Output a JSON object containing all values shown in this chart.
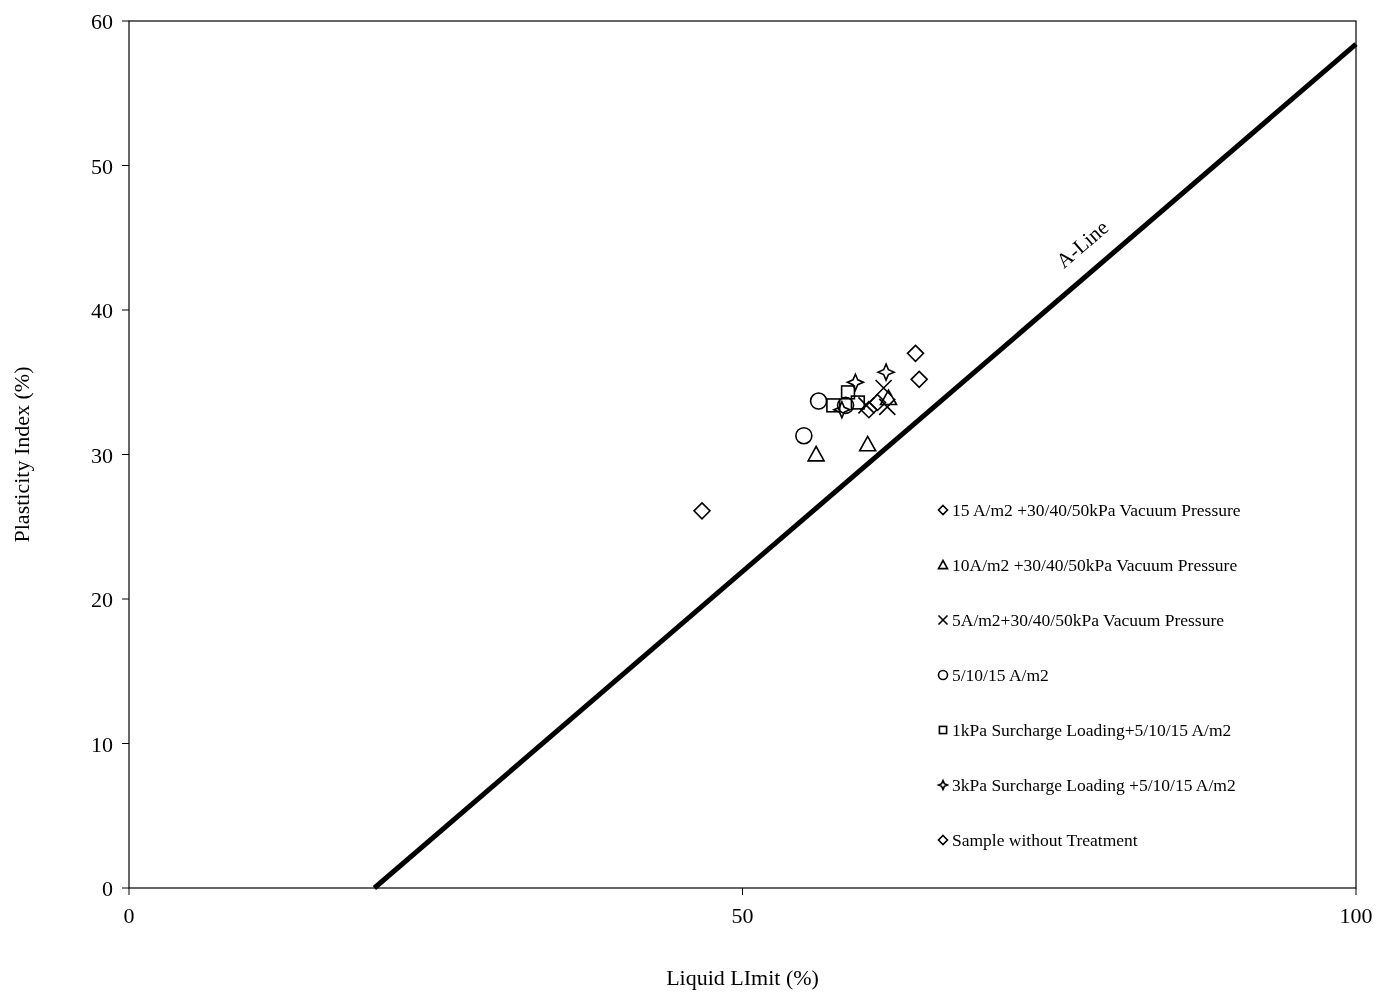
{
  "chart_data": {
    "type": "scatter",
    "xlabel": "Liquid LImit (%)",
    "ylabel": "Plasticity Index (%)",
    "xlim": [
      0,
      100
    ],
    "xticks": [
      0,
      50,
      100
    ],
    "ylim": [
      0,
      60
    ],
    "yticks": [
      0,
      10,
      20,
      30,
      40,
      50,
      60
    ],
    "grid": false,
    "legend": "right",
    "series": [
      {
        "name": "15 A/m2 +30/40/50kPa Vacuum Pressure",
        "color": "#000000",
        "marker": "diamond",
        "x": [
          64.1,
          64.4,
          60.3,
          61.0
        ],
        "values": [
          37.0,
          35.2,
          33.1,
          33.6
        ]
      },
      {
        "name": "10A/m2 +30/40/50kPa Vacuum Pressure",
        "color": "#000000",
        "marker": "triangle",
        "x": [
          56.0,
          60.2,
          61.9
        ],
        "values": [
          30.0,
          30.7,
          33.9
        ]
      },
      {
        "name": "5A/m2+30/40/50kPa Vacuum Pressure",
        "color": "#000000",
        "marker": "cross",
        "x": [
          61.8,
          61.5,
          60.1
        ],
        "values": [
          33.3,
          34.6,
          33.4
        ]
      },
      {
        "name": "5/10/15 A/m2",
        "color": "#000000",
        "marker": "circle",
        "x": [
          56.2,
          55.0,
          58.4
        ],
        "values": [
          33.7,
          31.3,
          33.4
        ]
      },
      {
        "name": "1kPa Surcharge Loading+5/10/15 A/m2",
        "color": "#000000",
        "marker": "square",
        "x": [
          57.4,
          58.6,
          59.4
        ],
        "values": [
          33.4,
          34.3,
          33.6
        ]
      },
      {
        "name": "3kPa Surcharge Loading +5/10/15 A/m2",
        "color": "#000000",
        "marker": "star",
        "x": [
          59.2,
          61.7,
          58.1
        ],
        "values": [
          35.0,
          35.7,
          33.1
        ]
      },
      {
        "name": "Sample without Treatment",
        "color": "#000000",
        "marker": "diamond",
        "x": [
          46.7
        ],
        "values": [
          26.1
        ]
      },
      {
        "name": "A-Line",
        "type": "line",
        "color": "#000000",
        "marker": "none",
        "x": [
          20,
          100
        ],
        "values": [
          0,
          58.4
        ]
      }
    ]
  }
}
